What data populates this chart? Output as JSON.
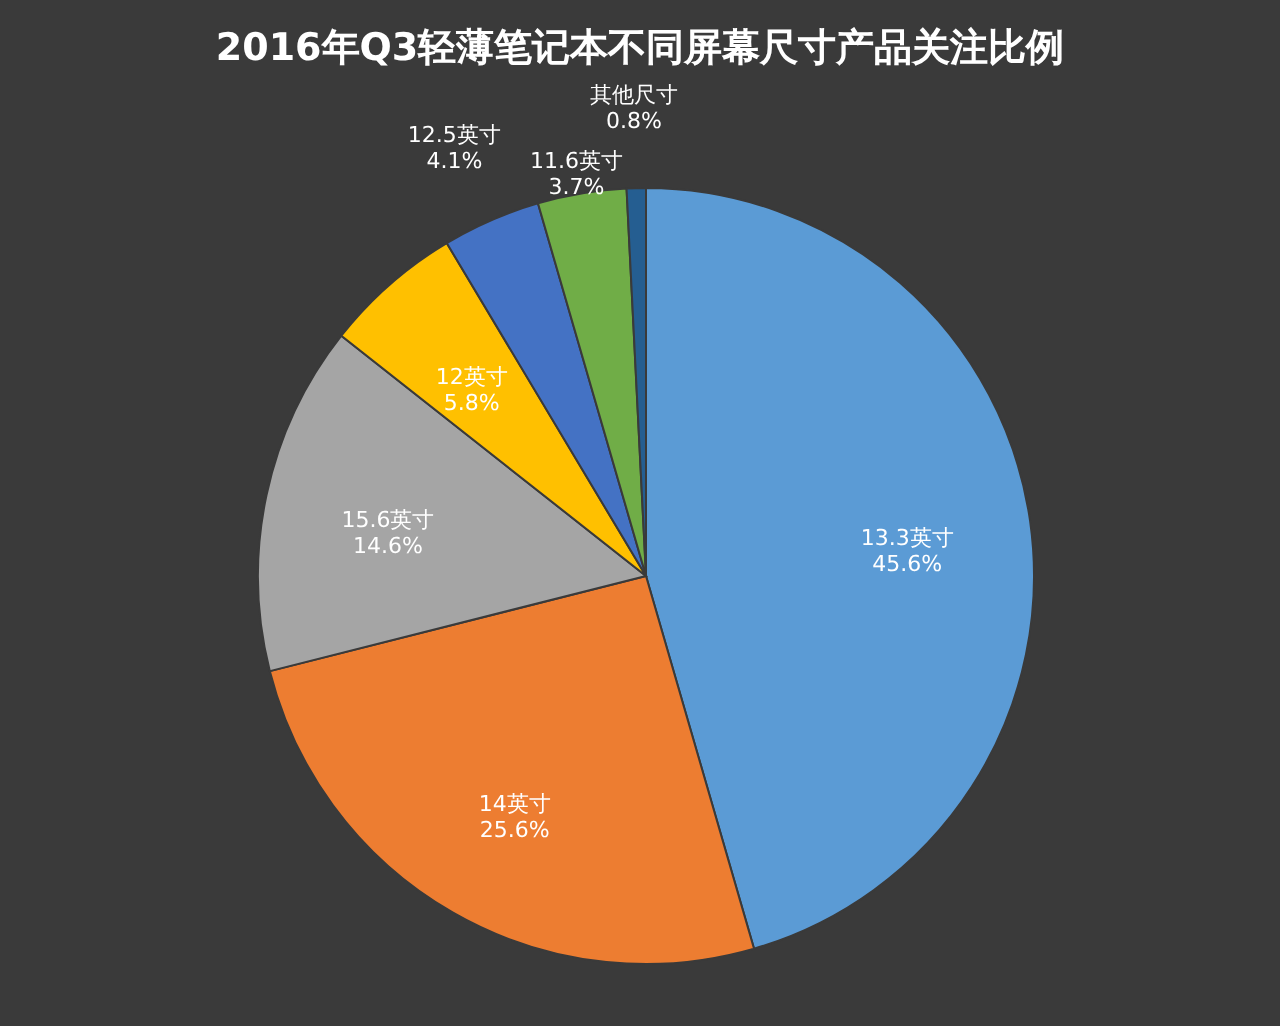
{
  "chart_data": {
    "type": "pie",
    "title": "2016年Q3轻薄笔记本不同屏幕尺寸产品关注比例",
    "categories": [
      "13.3英寸",
      "14英寸",
      "15.6英寸",
      "12英寸",
      "12.5英寸",
      "11.6英寸",
      "其他尺寸"
    ],
    "values": [
      45.6,
      25.6,
      14.6,
      5.8,
      4.1,
      3.7,
      0.8
    ],
    "value_labels": [
      "45.6%",
      "25.6%",
      "14.6%",
      "5.8%",
      "4.1%",
      "3.7%",
      "0.8%"
    ],
    "colors": [
      "#5b9bd5",
      "#ed7d31",
      "#a5a5a5",
      "#ffc000",
      "#4472c4",
      "#70ad47",
      "#255e91"
    ],
    "legend": false
  }
}
